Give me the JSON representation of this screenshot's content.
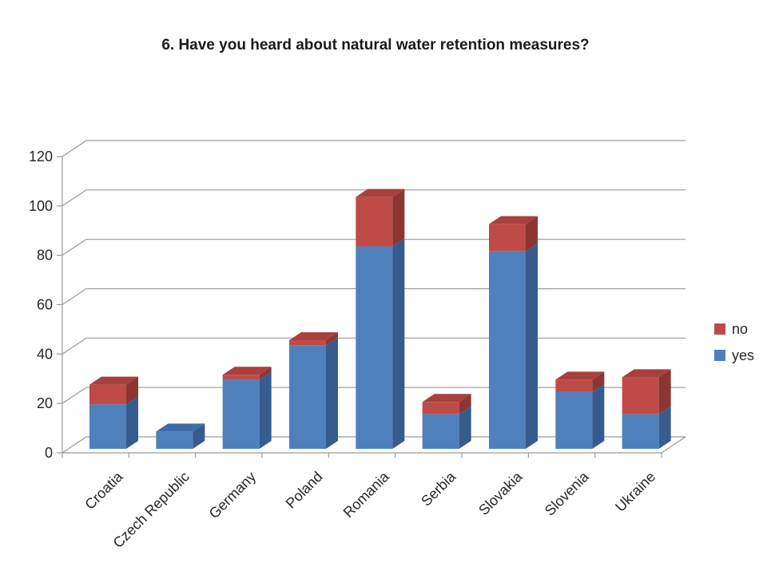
{
  "chart_data": {
    "type": "bar",
    "stacked": true,
    "effect": "3d",
    "title": "6. Have you heard about natural water retention measures?",
    "categories": [
      "Croatia",
      "Czech Republic",
      "Germany",
      "Poland",
      "Romania",
      "Serbia",
      "Slovakia",
      "Slovenia",
      "Ukraine"
    ],
    "series": [
      {
        "name": "yes",
        "color": "#4E80BC",
        "color_top": "#3E6CA6",
        "color_side": "#365C8E",
        "values": [
          18,
          7,
          28,
          42,
          82,
          14,
          80,
          23,
          14
        ]
      },
      {
        "name": "no",
        "color": "#BE4B48",
        "color_top": "#A8403E",
        "color_side": "#8C3634",
        "values": [
          8,
          0,
          2,
          2,
          20,
          5,
          11,
          5,
          15
        ]
      }
    ],
    "ylim": [
      0,
      120
    ],
    "yticks": [
      0,
      20,
      40,
      60,
      80,
      100,
      120
    ],
    "xlabel": "",
    "ylabel": "",
    "grid": true,
    "legend_position": "right",
    "legend_order": [
      "no",
      "yes"
    ]
  },
  "colors": {
    "gridline": "#9a9a9a",
    "axis": "#9a9a9a",
    "text": "#262626",
    "background": "#ffffff"
  }
}
